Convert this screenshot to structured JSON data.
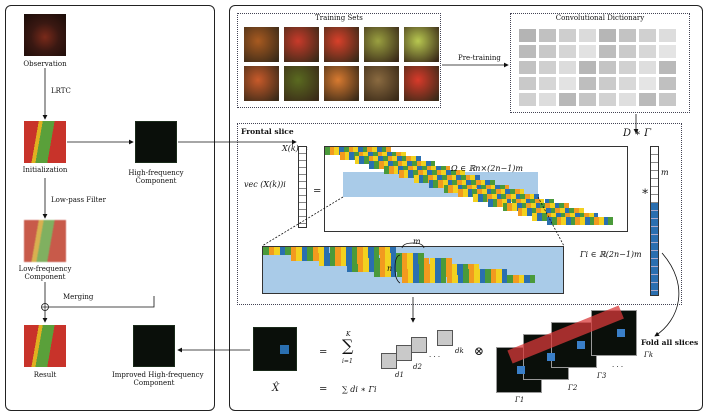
{
  "left_panel": {
    "observation": "Observation",
    "lrtc": "LRTC",
    "initialization": "Initialization",
    "high_freq_line1": "High-frequency",
    "high_freq_line2": "Component",
    "low_pass": "Low-pass Filter",
    "low_freq_line1": "Low-frequency",
    "low_freq_line2": "Component",
    "merging": "Merging",
    "result": "Result",
    "improved_line1": "Improved High-frequency",
    "improved_line2": "Component"
  },
  "right_panel": {
    "training_sets": "Training Sets",
    "conv_dictionary": "Convolutional Dictionary",
    "pre_training": "Pre-training",
    "d_conv_gamma": "D ∗ Γ",
    "frontal_slice": "Frontal slice",
    "xk": "X(k) =",
    "vec_label": "vec (X(k))i",
    "equals": "=",
    "omega": "Ω ∈ ℝn×(2n−1)m",
    "conv_star": "∗",
    "m_label": "m",
    "n_label": "n",
    "gamma_i": "Γi ∈ ℝ(2n−1)m",
    "fold_all": "Fold all slices",
    "formula1": {
      "eq": "=",
      "sum_top": "K",
      "sum_sym": "∑",
      "sum_bottom": "i=1"
    },
    "d1": "d1",
    "d2": "d2",
    "dk": "dk",
    "dots": "· · ·",
    "otimes": "⊗",
    "xhat": "X̂",
    "formula2": "∑ di ∗ Γi",
    "gammas": [
      "Γ1",
      "Γ2",
      "Γ3",
      "Γk"
    ],
    "gamma_dots": "· · ·"
  },
  "colors": {
    "stripe_green": "#4a9a3a",
    "stripe_orange": "#f29a1f",
    "stripe_yellow": "#f2d11f",
    "stripe_blue": "#2a6fb0",
    "band_blue": "#a9cbe8",
    "red_band": "#d83a3a",
    "pepper_red": "#c8332a",
    "pepper_green": "#5aa03a"
  }
}
